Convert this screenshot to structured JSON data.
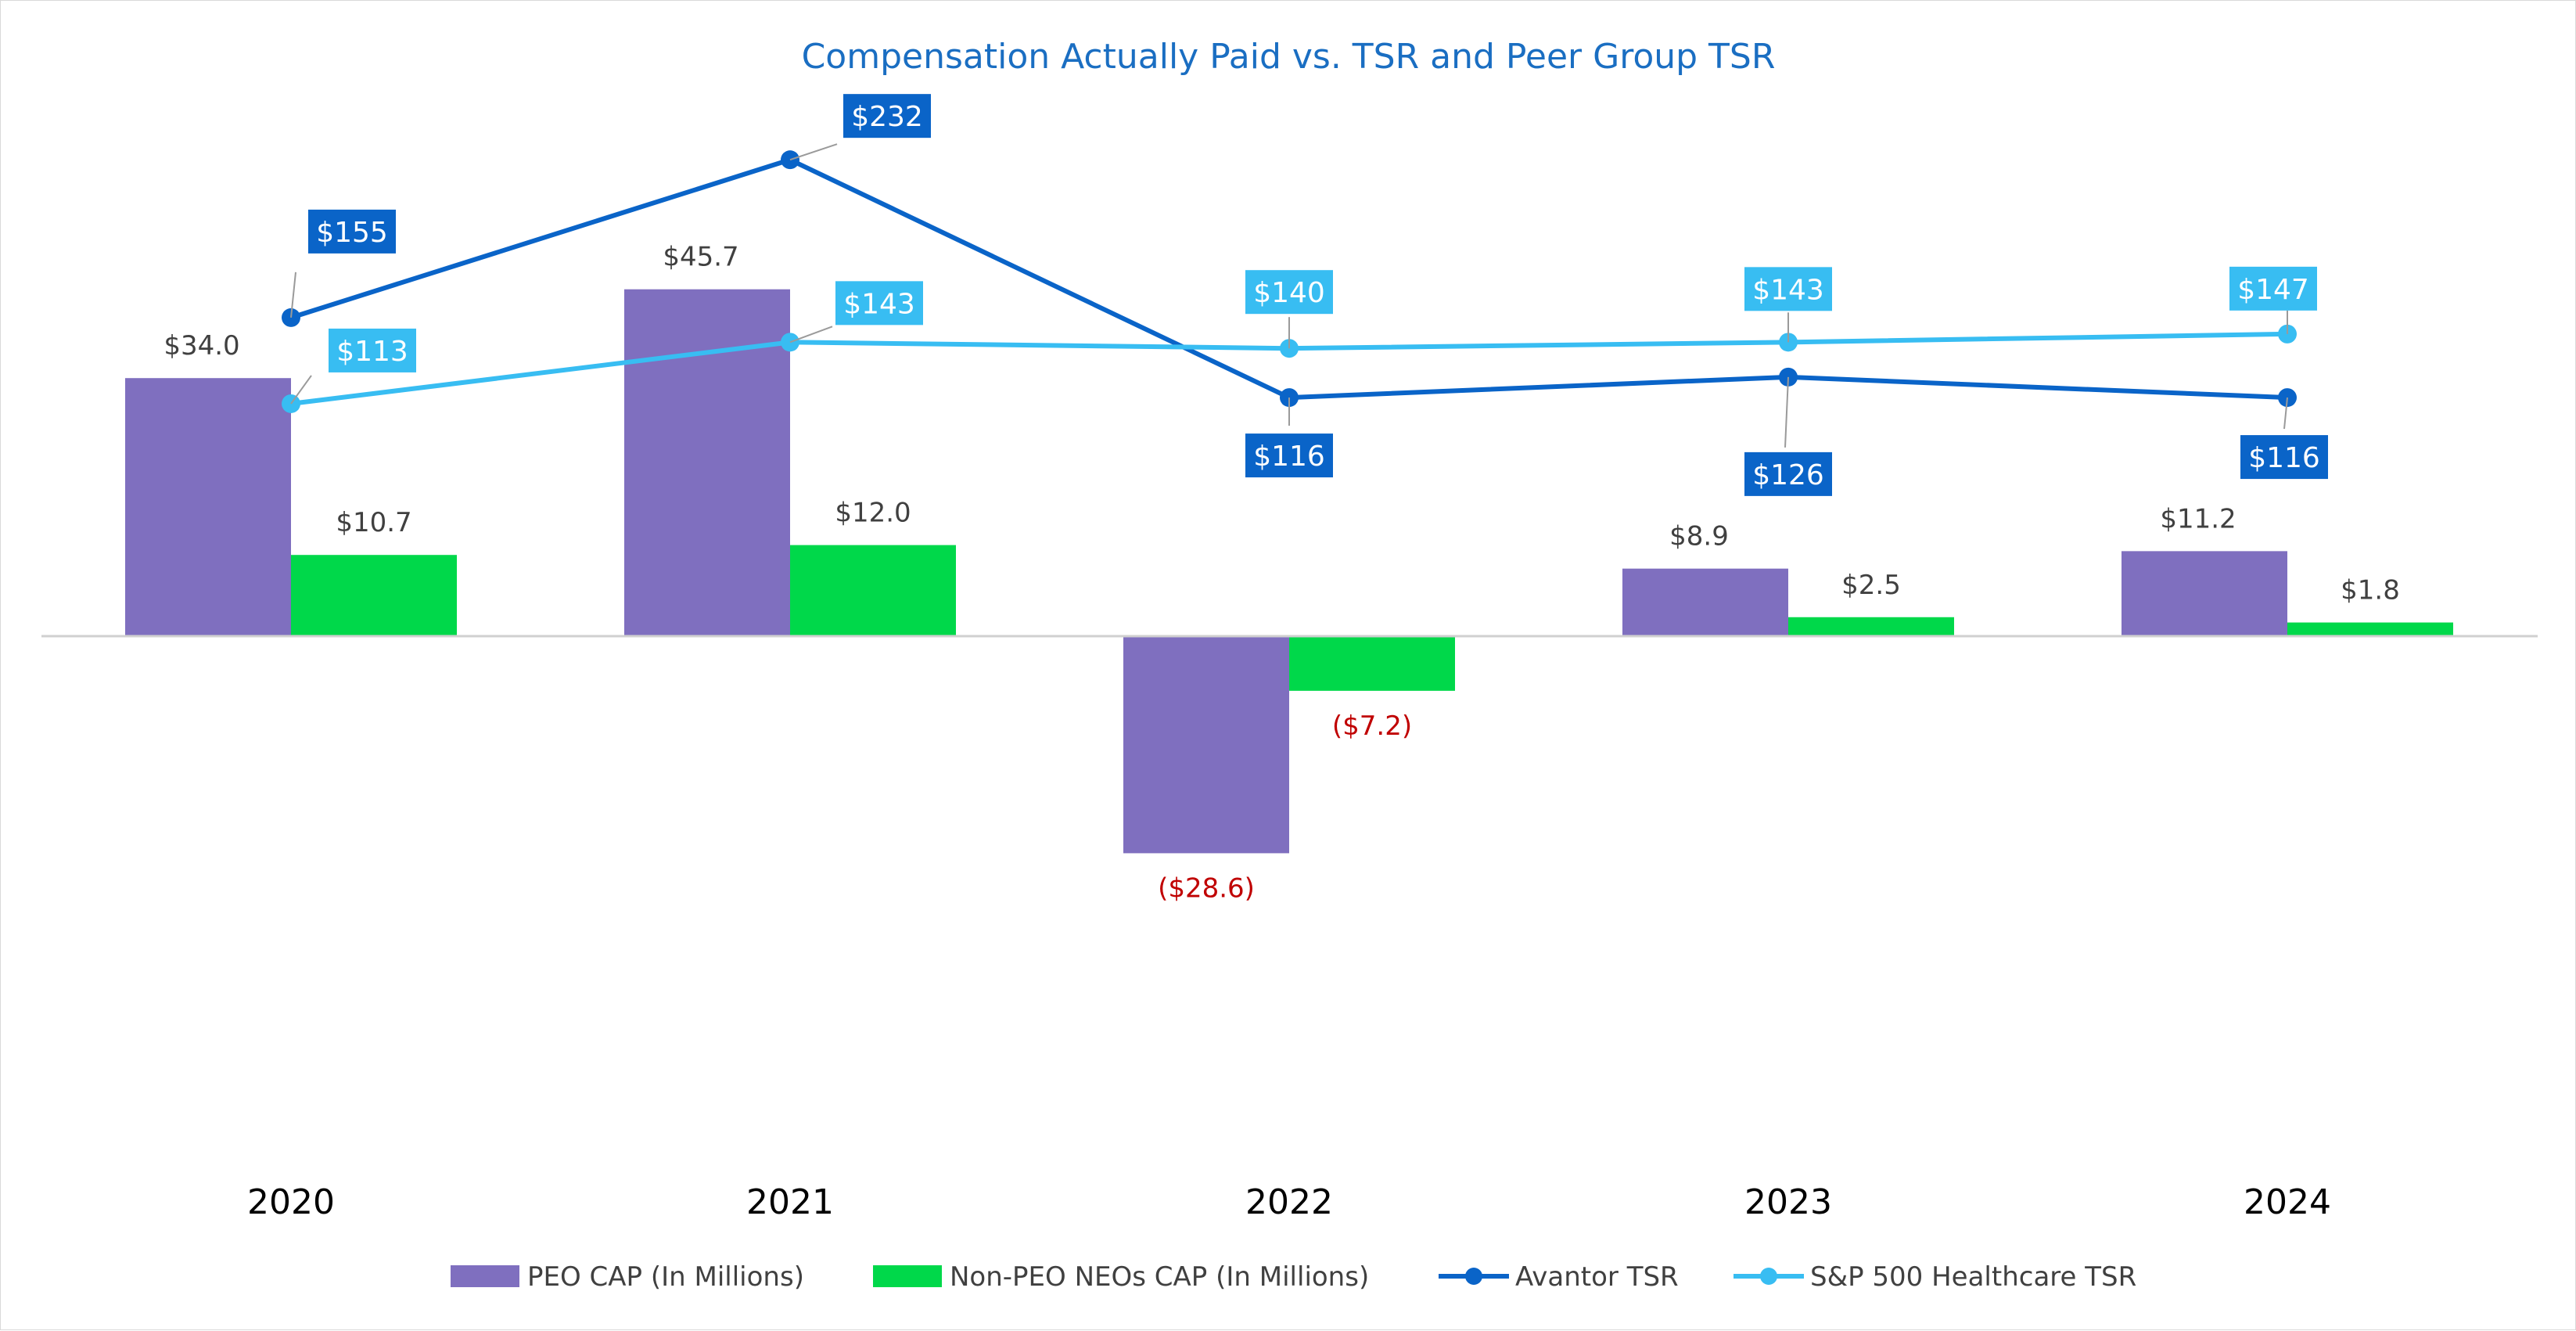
{
  "chart_data": {
    "type": "bar",
    "title": "Compensation Actually Paid vs. TSR and Peer Group TSR",
    "categories": [
      "2020",
      "2021",
      "2022",
      "2023",
      "2024"
    ],
    "bar_series": [
      {
        "name": "PEO CAP (In Millions)",
        "color": "#7f6fbf",
        "values": [
          34.0,
          45.7,
          -28.6,
          8.9,
          11.2
        ],
        "labels": [
          "$34.0",
          "$45.7",
          "($28.6)",
          "$8.9",
          "$11.2"
        ]
      },
      {
        "name": "Non-PEO NEOs CAP (In Millions)",
        "color": "#00d84a",
        "values": [
          10.7,
          12.0,
          -7.2,
          2.5,
          1.8
        ],
        "labels": [
          "$10.7",
          "$12.0",
          "($7.2)",
          "$2.5",
          "$1.8"
        ]
      }
    ],
    "line_series": [
      {
        "name": "Avantor TSR",
        "color": "#0a64c8",
        "values": [
          155,
          232,
          116,
          126,
          116
        ],
        "labels": [
          "$155",
          "$232",
          "$116",
          "$126",
          "$116"
        ]
      },
      {
        "name": "S&P 500 Healthcare TSR",
        "color": "#38bdf2",
        "values": [
          113,
          143,
          140,
          143,
          147
        ],
        "labels": [
          "$113",
          "$143",
          "$140",
          "$143",
          "$147"
        ]
      }
    ],
    "bar_axis_range": [
      -40,
      50
    ],
    "line_axis_range": [
      0,
      300
    ],
    "negative_label_color": "#c00000",
    "label_color": "#404040",
    "legend_position": "bottom",
    "gridlines": false
  }
}
